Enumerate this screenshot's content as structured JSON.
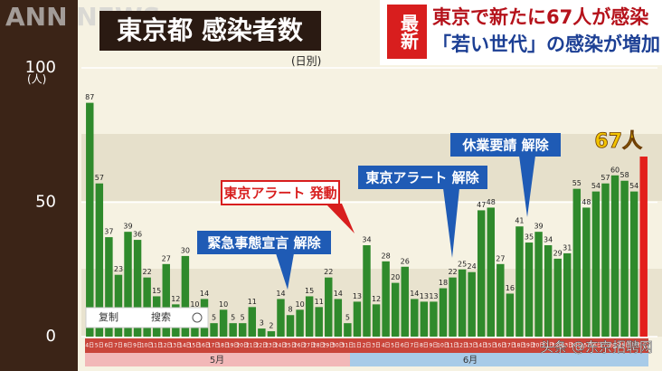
{
  "header": {
    "watermark": "ANN NEWS",
    "badge": "最新",
    "headline_1": "東京で新たに67人が感染",
    "headline_2": "「若い世代」の感染が増加"
  },
  "overlay": {
    "menu": [
      "复制",
      "搜索"
    ],
    "source": "头条 @东京招聘网"
  },
  "chart_data": {
    "type": "bar",
    "title": "東京都 感染者数",
    "subtitle": "(日別)",
    "y_unit": "(人)",
    "categories": [
      "4日",
      "5日",
      "6日",
      "7日",
      "8日",
      "9日",
      "10日",
      "11日",
      "12日",
      "13日",
      "14日",
      "15日",
      "16日",
      "17日",
      "18日",
      "19日",
      "20日",
      "21日",
      "22日",
      "23日",
      "24日",
      "25日",
      "26日",
      "27日",
      "28日",
      "29日",
      "30日",
      "31日",
      "1日",
      "2日",
      "3日",
      "4日",
      "5日",
      "6日",
      "7日",
      "8日",
      "9日",
      "10日",
      "11日",
      "12日",
      "13日",
      "14日",
      "15日",
      "16日",
      "17日",
      "18日",
      "19日",
      "20日",
      "21日",
      "22日",
      "23日",
      "24日",
      "25日",
      "26日",
      "27日",
      "28日",
      "29日",
      "30日",
      "1日"
    ],
    "values": [
      87,
      57,
      37,
      23,
      39,
      36,
      22,
      15,
      27,
      12,
      30,
      10,
      14,
      5,
      10,
      5,
      5,
      11,
      3,
      2,
      14,
      8,
      10,
      15,
      11,
      22,
      14,
      5,
      13,
      34,
      12,
      28,
      20,
      26,
      14,
      13,
      13,
      18,
      22,
      25,
      24,
      47,
      48,
      27,
      16,
      41,
      35,
      39,
      34,
      29,
      31,
      55,
      48,
      54,
      57,
      60,
      58,
      54,
      67
    ],
    "value_labels": [
      "87",
      "57",
      "37",
      "23",
      "39",
      "36",
      "22",
      "15",
      "27",
      "12",
      "30",
      "10",
      "14",
      "5",
      "10",
      "5",
      "5",
      "11",
      "3",
      "2",
      "14",
      "8",
      "10",
      "15",
      "11",
      "22",
      "14",
      "5",
      "13",
      "34",
      "12",
      "28",
      "20",
      "26",
      "14",
      "13",
      "13",
      "18",
      "22",
      "25",
      "24",
      "47",
      "48",
      "27",
      "16",
      "41",
      "35",
      "39",
      "34",
      "29",
      "31",
      "55",
      "48",
      "54",
      "57",
      "60",
      "58",
      "54",
      "67人"
    ],
    "months": [
      "5月",
      "6月"
    ],
    "color": "#2f8a2c",
    "highlight_color": "#e3201b",
    "ylim": [
      0,
      100
    ],
    "yticks": [
      0,
      50,
      100
    ],
    "annotations": [
      "緊急事態宣言 解除",
      "東京アラート 発動",
      "東京アラート 解除",
      "休業要請 解除"
    ]
  }
}
